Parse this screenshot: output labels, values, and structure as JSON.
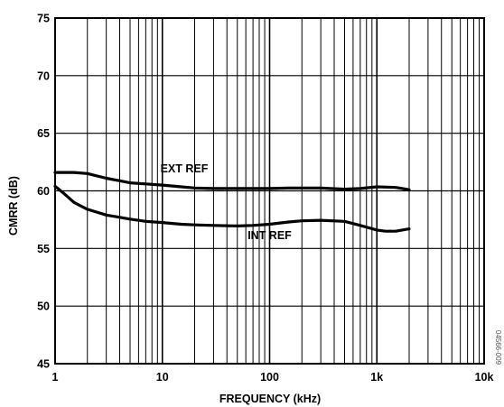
{
  "chart_data": {
    "type": "line",
    "title": "",
    "xlabel": "FREQUENCY (kHz)",
    "ylabel": "CMRR (dB)",
    "x_scale": "log",
    "xlim": [
      1,
      10000
    ],
    "ylim": [
      45,
      75
    ],
    "x_ticks": [
      {
        "value": 1,
        "label": "1"
      },
      {
        "value": 10,
        "label": "10"
      },
      {
        "value": 100,
        "label": "100"
      },
      {
        "value": 1000,
        "label": "1k"
      },
      {
        "value": 10000,
        "label": "10k"
      }
    ],
    "y_ticks": [
      {
        "value": 45,
        "label": "45"
      },
      {
        "value": 50,
        "label": "50"
      },
      {
        "value": 55,
        "label": "55"
      },
      {
        "value": 60,
        "label": "60"
      },
      {
        "value": 65,
        "label": "65"
      },
      {
        "value": 70,
        "label": "70"
      },
      {
        "value": 75,
        "label": "75"
      }
    ],
    "grid": true,
    "series": [
      {
        "name": "EXT REF",
        "x": [
          1,
          1.5,
          2,
          3,
          5,
          7,
          10,
          15,
          20,
          30,
          50,
          70,
          100,
          150,
          200,
          300,
          500,
          700,
          1000,
          1500,
          2000
        ],
        "y": [
          61.6,
          61.6,
          61.5,
          61.1,
          60.7,
          60.6,
          60.5,
          60.35,
          60.25,
          60.2,
          60.2,
          60.2,
          60.2,
          60.25,
          60.25,
          60.25,
          60.15,
          60.2,
          60.35,
          60.3,
          60.1
        ]
      },
      {
        "name": "INT REF",
        "x": [
          1,
          1.2,
          1.5,
          2,
          3,
          5,
          7,
          10,
          15,
          20,
          30,
          50,
          70,
          100,
          150,
          200,
          300,
          500,
          700,
          1000,
          1200,
          1500,
          2000
        ],
        "y": [
          60.4,
          59.8,
          59.0,
          58.4,
          57.9,
          57.55,
          57.35,
          57.25,
          57.1,
          57.05,
          57.0,
          56.95,
          57.0,
          57.1,
          57.3,
          57.4,
          57.45,
          57.35,
          57.0,
          56.6,
          56.5,
          56.5,
          56.7
        ]
      }
    ],
    "annotations": [
      {
        "text": "EXT REF",
        "x": 16,
        "y": 61.6
      },
      {
        "text": "INT REF",
        "x": 100,
        "y": 55.8
      }
    ],
    "figure_code": "04566-009"
  }
}
